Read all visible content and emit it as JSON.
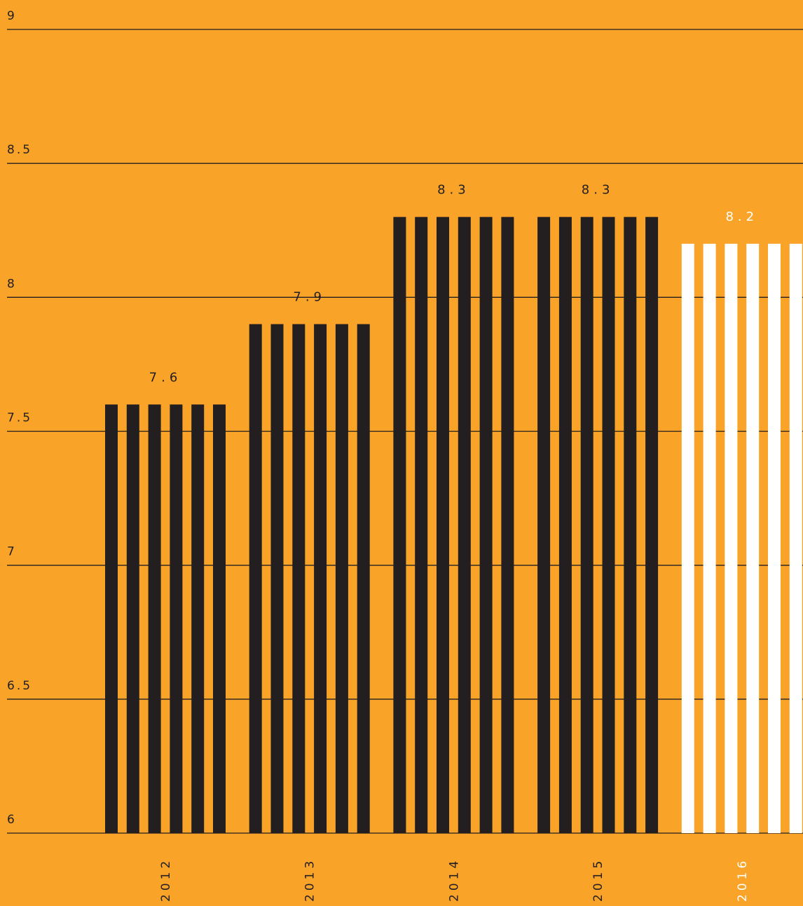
{
  "colors": {
    "background": "#F9A428",
    "bar": "#231F20",
    "bar_highlight": "#FFFFFF",
    "gridline": "#231F20"
  },
  "chart_data": {
    "type": "bar",
    "categories": [
      "2012",
      "2013",
      "2014",
      "2015",
      "2016"
    ],
    "values": [
      7.6,
      7.9,
      8.3,
      8.3,
      8.2
    ],
    "value_labels": [
      "7.6",
      "7.9",
      "8.3",
      "8.3",
      "8.2"
    ],
    "highlight_category": "2016",
    "ylim": [
      6,
      9
    ],
    "yticks": [
      6,
      6.5,
      7,
      7.5,
      8,
      8.5,
      9
    ],
    "ytick_labels": [
      "6",
      "6.5",
      "7",
      "7.5",
      "8",
      "8.5",
      "9"
    ],
    "grid": true,
    "bar_style": "striped",
    "stripes_per_bar": 6,
    "xlabel_orientation": "vertical",
    "title": "",
    "xlabel": "",
    "ylabel": ""
  }
}
